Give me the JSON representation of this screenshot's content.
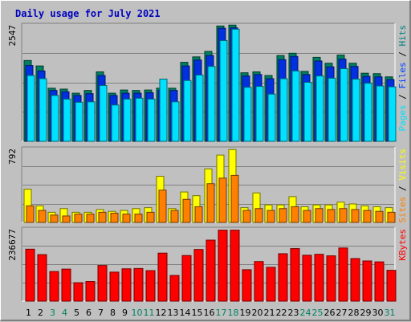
{
  "chart_data": {
    "type": "bar",
    "title": "Daily usage for July 2021",
    "categories": [
      "1",
      "2",
      "3",
      "4",
      "5",
      "6",
      "7",
      "8",
      "9",
      "10",
      "11",
      "12",
      "13",
      "14",
      "15",
      "16",
      "17",
      "18",
      "19",
      "20",
      "21",
      "22",
      "23",
      "24",
      "25",
      "26",
      "27",
      "28",
      "29",
      "30",
      "31"
    ],
    "weekend_days": [
      "3",
      "4",
      "10",
      "11",
      "17",
      "18",
      "24",
      "25",
      "31"
    ],
    "grid": true,
    "panels": [
      {
        "ymax_label": "2547",
        "ymax": 2547,
        "legend": [
          {
            "text": "Pages",
            "color": "#00e0ff"
          },
          {
            "text": " / ",
            "color": "#000000"
          },
          {
            "text": "Files",
            "color": "#0040ff"
          },
          {
            "text": " / ",
            "color": "#000000"
          },
          {
            "text": "Hits",
            "color": "#008080"
          }
        ],
        "series": [
          {
            "name": "Hits",
            "color": "#008060",
            "values": [
              1780,
              1660,
              1170,
              1150,
              1060,
              1120,
              1530,
              1060,
              1130,
              1120,
              1130,
              1170,
              1170,
              1740,
              1860,
              1980,
              2540,
              2560,
              1510,
              1530,
              1450,
              1890,
              1940,
              1540,
              1850,
              1720,
              1900,
              1720,
              1500,
              1490,
              1420
            ]
          },
          {
            "name": "Files",
            "color": "#0030e0",
            "values": [
              1670,
              1550,
              1120,
              1090,
              1010,
              1050,
              1450,
              1010,
              1060,
              1060,
              1070,
              1120,
              1120,
              1660,
              1790,
              1890,
              2490,
              2500,
              1440,
              1470,
              1380,
              1800,
              1870,
              1470,
              1770,
              1640,
              1810,
              1650,
              1430,
              1420,
              1360
            ]
          },
          {
            "name": "Pages",
            "color": "#00e0ff",
            "values": [
              1450,
              1380,
              1010,
              930,
              860,
              870,
              1230,
              800,
              930,
              950,
              930,
              1370,
              870,
              1340,
              1460,
              1650,
              2220,
              2470,
              1190,
              1210,
              1040,
              1380,
              1550,
              1300,
              1440,
              1390,
              1600,
              1370,
              1280,
              1220,
              1200
            ]
          }
        ]
      },
      {
        "ymax_label": "792",
        "ymax": 792,
        "legend": [
          {
            "text": "Sites",
            "color": "#ff8000"
          },
          {
            "text": " / ",
            "color": "#000000"
          },
          {
            "text": "Visits",
            "color": "#ffff00"
          }
        ],
        "series": [
          {
            "name": "Visits",
            "color": "#ffff00",
            "values": [
              360,
              180,
              110,
              150,
              110,
              110,
              140,
              120,
              130,
              150,
              160,
              500,
              150,
              330,
              290,
              580,
              730,
              790,
              160,
              320,
              190,
              190,
              280,
              170,
              190,
              190,
              220,
              200,
              180,
              170,
              160
            ]
          },
          {
            "name": "Sites",
            "color": "#ff8000",
            "values": [
              180,
              130,
              80,
              70,
              90,
              90,
              110,
              100,
              90,
              90,
              110,
              350,
              130,
              250,
              170,
              420,
              480,
              510,
              130,
              150,
              130,
              150,
              170,
              130,
              150,
              140,
              150,
              140,
              130,
              120,
              110
            ]
          }
        ]
      },
      {
        "ymax_label": "236677",
        "ymax": 236677,
        "legend": [
          {
            "text": "KBytes",
            "color": "#ff0000"
          }
        ],
        "series": [
          {
            "name": "KBytes",
            "color": "#ff0000",
            "values": [
              172000,
              154000,
              98000,
              106000,
              61000,
              65000,
              118000,
              96000,
              107000,
              108000,
              101000,
              159000,
              85000,
              151000,
              171000,
              202000,
              235000,
              235000,
              104000,
              131000,
              112000,
              157000,
              174000,
              152000,
              155000,
              150000,
              176000,
              141000,
              133000,
              130000,
              102000
            ]
          }
        ]
      }
    ]
  }
}
